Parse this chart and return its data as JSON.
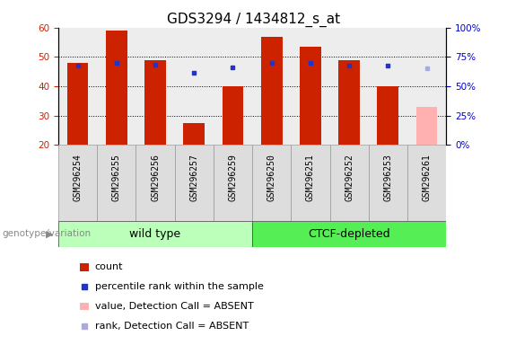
{
  "title": "GDS3294 / 1434812_s_at",
  "samples": [
    "GSM296254",
    "GSM296255",
    "GSM296256",
    "GSM296257",
    "GSM296259",
    "GSM296250",
    "GSM296251",
    "GSM296252",
    "GSM296253",
    "GSM296261"
  ],
  "bar_values": [
    48,
    59,
    49,
    27.5,
    40,
    57,
    53.5,
    49,
    40,
    null
  ],
  "absent_bar_value": 33,
  "absent_bar_color": "#ffb0b0",
  "red_color": "#cc2200",
  "blue_dots": [
    47,
    48,
    47.5,
    44.5,
    46.5,
    48,
    48,
    47,
    47,
    null
  ],
  "absent_dot_value": 46,
  "absent_dot_color": "#aaaadd",
  "dot_color": "#2233cc",
  "ylim": [
    20,
    60
  ],
  "yticks_left": [
    20,
    30,
    40,
    50,
    60
  ],
  "yticks_right": [
    0,
    25,
    50,
    75,
    100
  ],
  "yright_labels": [
    "0%",
    "25%",
    "50%",
    "75%",
    "100%"
  ],
  "groups": [
    {
      "label": "wild type",
      "indices": [
        0,
        1,
        2,
        3,
        4
      ],
      "color": "#bbffbb"
    },
    {
      "label": "CTCF-depleted",
      "indices": [
        5,
        6,
        7,
        8,
        9
      ],
      "color": "#55ee55"
    }
  ],
  "group_label": "genotype/variation",
  "legend_items": [
    {
      "label": "count",
      "color": "#cc2200",
      "type": "rect"
    },
    {
      "label": "percentile rank within the sample",
      "color": "#2233cc",
      "type": "square"
    },
    {
      "label": "value, Detection Call = ABSENT",
      "color": "#ffb0b0",
      "type": "rect"
    },
    {
      "label": "rank, Detection Call = ABSENT",
      "color": "#aaaadd",
      "type": "square"
    }
  ],
  "col_bg_color": "#cccccc",
  "col_bg_alpha": 0.35,
  "plot_bg": "#ffffff",
  "bg_color": "#ffffff",
  "left_tick_color": "#cc2200",
  "right_tick_color": "#0000cc",
  "title_fontsize": 11,
  "tick_label_fontsize": 7.5,
  "sample_fontsize": 7,
  "legend_fontsize": 8,
  "group_fontsize": 9
}
